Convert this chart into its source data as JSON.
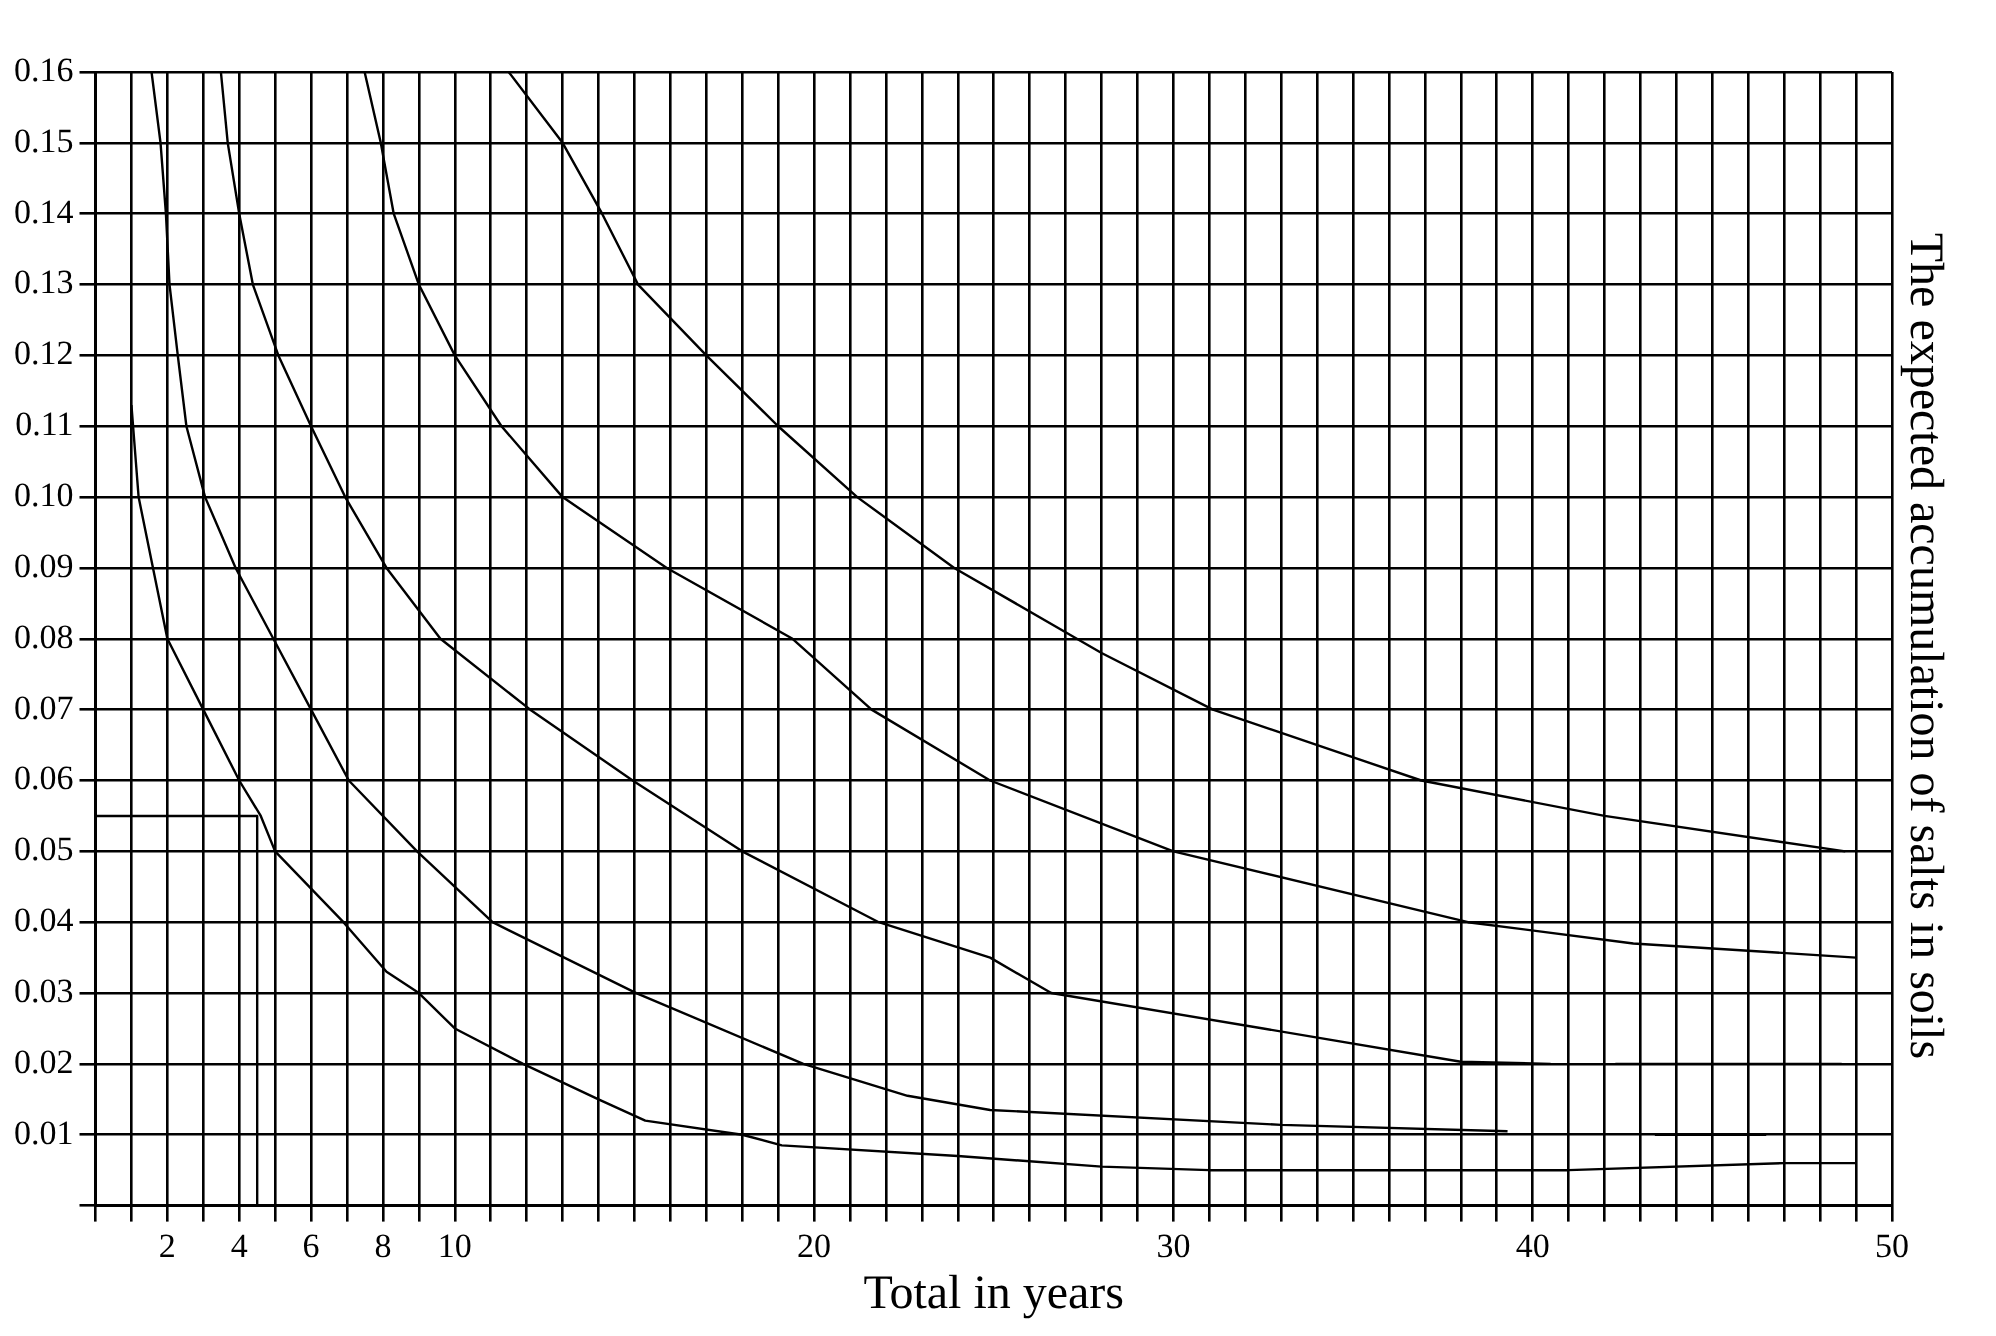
{
  "chart_data": {
    "type": "line",
    "xlabel": "Total in years",
    "ylabel": "The expected accumulation of salts in soils",
    "xlim": [
      0,
      50
    ],
    "ylim": [
      0,
      0.16
    ],
    "xticks": [
      {
        "value": 0,
        "label": null
      },
      {
        "value": 1,
        "label": null
      },
      2,
      {
        "value": 3,
        "label": null
      },
      4,
      {
        "value": 5,
        "label": null
      },
      6,
      {
        "value": 7,
        "label": null
      },
      8,
      {
        "value": 9,
        "label": null
      },
      10,
      {
        "value": 11,
        "label": null
      },
      {
        "value": 12,
        "label": null
      },
      {
        "value": 13,
        "label": null
      },
      {
        "value": 14,
        "label": null
      },
      {
        "value": 15,
        "label": null
      },
      {
        "value": 16,
        "label": null
      },
      {
        "value": 17,
        "label": null
      },
      {
        "value": 18,
        "label": null
      },
      {
        "value": 19,
        "label": null
      },
      20,
      {
        "value": 21,
        "label": null
      },
      {
        "value": 22,
        "label": null
      },
      {
        "value": 23,
        "label": null
      },
      {
        "value": 24,
        "label": null
      },
      {
        "value": 25,
        "label": null
      },
      {
        "value": 26,
        "label": null
      },
      {
        "value": 27,
        "label": null
      },
      {
        "value": 28,
        "label": null
      },
      {
        "value": 29,
        "label": null
      },
      30,
      {
        "value": 31,
        "label": null
      },
      {
        "value": 32,
        "label": null
      },
      {
        "value": 33,
        "label": null
      },
      {
        "value": 34,
        "label": null
      },
      {
        "value": 35,
        "label": null
      },
      {
        "value": 36,
        "label": null
      },
      {
        "value": 37,
        "label": null
      },
      {
        "value": 38,
        "label": null
      },
      {
        "value": 39,
        "label": null
      },
      40,
      {
        "value": 41,
        "label": null
      },
      {
        "value": 42,
        "label": null
      },
      {
        "value": 43,
        "label": null
      },
      {
        "value": 44,
        "label": null
      },
      {
        "value": 45,
        "label": null
      },
      {
        "value": 46,
        "label": null
      },
      {
        "value": 47,
        "label": null
      },
      {
        "value": 48,
        "label": null
      },
      {
        "value": 49,
        "label": null
      },
      50
    ],
    "yticks": [
      {
        "value": 0,
        "label": null
      },
      0.01,
      0.02,
      0.03,
      0.04,
      0.05,
      0.06,
      0.07,
      0.08,
      0.09,
      {
        "value": 0.1,
        "label": "0.10"
      },
      0.11,
      0.12,
      0.13,
      0.14,
      0.15,
      0.16
    ],
    "grid": true,
    "marker": "none",
    "line_style": "solid",
    "series": [
      {
        "color": "#000000",
        "x": [
          1.0,
          1.2,
          1.6,
          2.0,
          3.0,
          4.0,
          4.6,
          5.0,
          6.9,
          8.1,
          9.0,
          10.0,
          11.9,
          14.0,
          15.3,
          18.0,
          19.1,
          24.0,
          28.0,
          31.0,
          41.0,
          47.0,
          49.0
        ],
        "values": [
          0.113,
          0.1,
          0.09,
          0.08,
          0.07,
          0.06,
          0.055,
          0.05,
          0.04,
          0.033,
          0.03,
          0.025,
          0.02,
          0.015,
          0.012,
          0.01,
          0.0085,
          0.007,
          0.0055,
          0.005,
          0.005,
          0.006,
          0.006
        ]
      },
      {
        "color": "#000000",
        "x": [
          1.56,
          1.81,
          1.96,
          2.06,
          2.29,
          2.53,
          3.05,
          3.9,
          4.95,
          6.0,
          7.05,
          8.95,
          11.05,
          15.05,
          19.7,
          22.6,
          24.9,
          33.0,
          39.3
        ],
        "values": [
          0.16,
          0.15,
          0.14,
          0.13,
          0.12,
          0.11,
          0.1,
          0.09,
          0.08,
          0.07,
          0.06,
          0.05,
          0.04,
          0.03,
          0.02,
          0.0155,
          0.0135,
          0.0114,
          0.0105
        ]
      },
      {
        "color": "#000000",
        "x": [
          43.4,
          46.5
        ],
        "values": [
          0.01,
          0.01
        ]
      },
      {
        "color": "#000000",
        "x": [
          3.49,
          3.68,
          4.0,
          4.38,
          5.09,
          6.0,
          6.95,
          8.1,
          9.6,
          12.1,
          14.95,
          18.0,
          21.8,
          24.9,
          26.6,
          32.5,
          38.0,
          40.5
        ],
        "values": [
          0.16,
          0.15,
          0.14,
          0.13,
          0.12,
          0.11,
          0.1,
          0.09,
          0.08,
          0.07,
          0.06,
          0.05,
          0.04,
          0.035,
          0.03,
          0.025,
          0.0203,
          0.02
        ]
      },
      {
        "color": "#000000",
        "x": [
          42.3,
          48.6
        ],
        "values": [
          0.02,
          0.02
        ]
      },
      {
        "color": "#000000",
        "x": [
          7.49,
          7.94,
          8.3,
          9.0,
          10.0,
          11.3,
          13.0,
          15.9,
          19.4,
          21.6,
          24.9,
          30.0,
          38.2,
          42.8,
          49.0
        ],
        "values": [
          0.16,
          0.15,
          0.14,
          0.13,
          0.12,
          0.11,
          0.1,
          0.09,
          0.08,
          0.07,
          0.06,
          0.05,
          0.04,
          0.037,
          0.035
        ]
      },
      {
        "color": "#000000",
        "x": [
          11.5,
          13.0,
          14.1,
          15.1,
          17.0,
          19.0,
          21.2,
          23.9,
          28.0,
          31.1,
          36.9,
          42.0,
          48.7
        ],
        "values": [
          0.16,
          0.15,
          0.14,
          0.13,
          0.12,
          0.11,
          0.1,
          0.09,
          0.078,
          0.07,
          0.06,
          0.055,
          0.05
        ]
      },
      {
        "color": "#000000",
        "x": [
          0,
          4.5,
          4.5
        ],
        "values": [
          0.055,
          0.055,
          0
        ]
      }
    ]
  }
}
